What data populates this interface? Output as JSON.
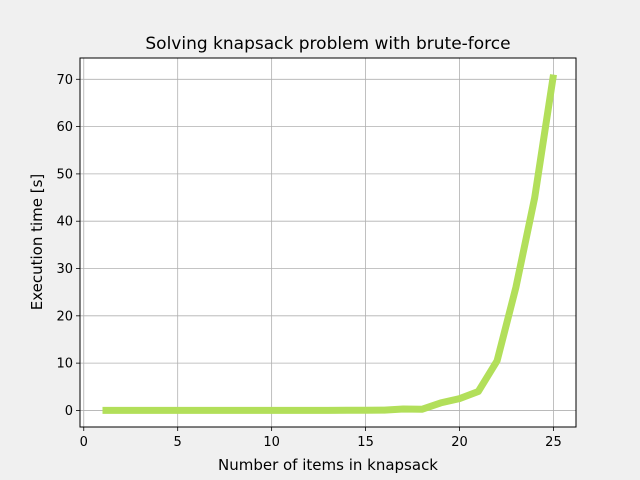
{
  "chart_data": {
    "type": "line",
    "title": "Solving knapsack problem with brute-force",
    "xlabel": "Number of items in knapsack",
    "ylabel": "Execution time [s]",
    "xlim": [
      -0.2,
      26.2
    ],
    "ylim": [
      -3.5,
      74.5
    ],
    "xticks": [
      0,
      5,
      10,
      15,
      20,
      25
    ],
    "yticks": [
      0,
      10,
      20,
      30,
      40,
      50,
      60,
      70
    ],
    "grid": true,
    "series": [
      {
        "color": "#b2df5a",
        "x": [
          1,
          2,
          3,
          4,
          5,
          6,
          7,
          8,
          9,
          10,
          11,
          12,
          13,
          14,
          15,
          16,
          17,
          18,
          19,
          20,
          21,
          22,
          23,
          24,
          25
        ],
        "y": [
          0,
          0,
          0,
          0,
          0,
          0,
          0,
          0,
          0,
          0,
          0,
          0,
          0.01,
          0.02,
          0.04,
          0.08,
          0.3,
          0.25,
          1.6,
          2.5,
          4,
          10.5,
          26,
          45,
          71
        ]
      }
    ]
  }
}
